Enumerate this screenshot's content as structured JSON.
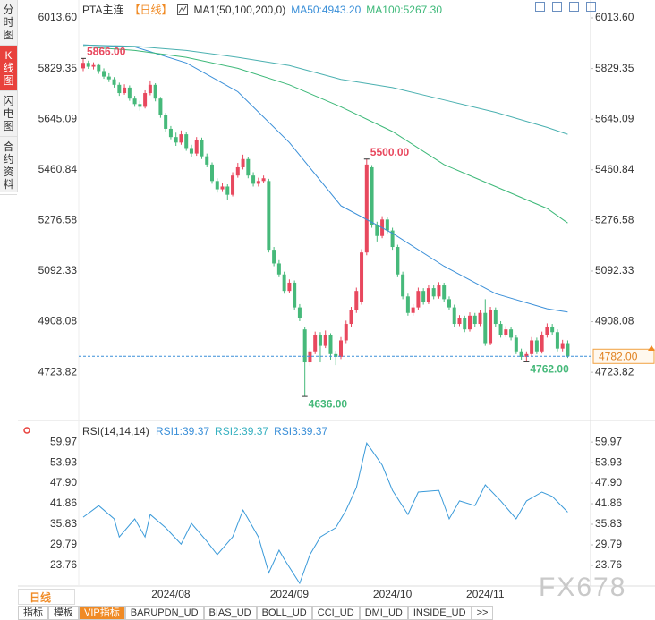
{
  "sidebar": {
    "tabs": [
      "分时图",
      "K线图",
      "闪电图",
      "合约资料"
    ],
    "active": 1
  },
  "chart_data": [
    {
      "type": "candlestick",
      "title": "PTA主连",
      "period": "【日线】",
      "indicator": "MA1(50,100,200,0)",
      "up_color": "#e8485e",
      "down_color": "#46b97a",
      "categories": [
        null,
        null,
        null,
        null,
        null,
        null,
        null,
        null,
        null,
        null,
        null,
        null,
        null,
        null,
        null,
        null,
        null,
        "2024/08",
        null,
        null,
        null,
        null,
        null,
        null,
        null,
        null,
        null,
        null,
        null,
        null,
        null,
        null,
        null,
        null,
        null,
        null,
        null,
        null,
        null,
        null,
        "2024/09",
        null,
        null,
        null,
        null,
        null,
        null,
        null,
        null,
        null,
        null,
        null,
        null,
        null,
        null,
        null,
        null,
        null,
        null,
        null,
        "2024/10",
        null,
        null,
        null,
        null,
        null,
        null,
        null,
        null,
        null,
        null,
        null,
        null,
        null,
        null,
        null,
        null,
        null,
        "2024/11",
        null,
        null,
        null,
        null,
        null,
        null,
        null,
        null,
        null,
        null,
        null,
        null,
        null,
        null,
        null,
        null
      ],
      "open": [
        5830,
        5850,
        5836,
        5842,
        5820,
        5800,
        5790,
        5770,
        5740,
        5760,
        5720,
        5700,
        5690,
        5740,
        5770,
        5720,
        5660,
        5610,
        5580,
        5560,
        5590,
        5540,
        5520,
        5570,
        5510,
        5480,
        5420,
        5390,
        5400,
        5370,
        5440,
        5470,
        5500,
        5440,
        5410,
        5420,
        5420,
        5170,
        5120,
        5080,
        5020,
        5050,
        4960,
        4880,
        4760,
        4800,
        4860,
        4820,
        4860,
        4790,
        4780,
        4840,
        4900,
        4950,
        4980,
        5160,
        5470,
        5260,
        5220,
        5280,
        5240,
        5180,
        5080,
        5000,
        4940,
        4960,
        5020,
        4980,
        5030,
        5000,
        5040,
        4990,
        4960,
        4900,
        4920,
        4880,
        4930,
        4900,
        4940,
        4830,
        4950,
        4900,
        4860,
        4880,
        4850,
        4800,
        4780,
        4790,
        4840,
        4800,
        4860,
        4890,
        4870,
        4810,
        4830
      ],
      "high": [
        5866,
        5858,
        5852,
        5848,
        5830,
        5812,
        5798,
        5778,
        5772,
        5768,
        5730,
        5712,
        5750,
        5786,
        5776,
        5726,
        5668,
        5620,
        5596,
        5604,
        5598,
        5552,
        5580,
        5578,
        5520,
        5488,
        5430,
        5412,
        5408,
        5452,
        5486,
        5516,
        5506,
        5452,
        5432,
        5440,
        5428,
        5180,
        5132,
        5090,
        5062,
        5058,
        4972,
        4890,
        4812,
        4872,
        4870,
        4876,
        4866,
        4802,
        4852,
        4912,
        4962,
        5032,
        5172,
        5500,
        5478,
        5272,
        5292,
        5290,
        5250,
        5188,
        5090,
        5010,
        4972,
        5032,
        5030,
        5042,
        5040,
        5052,
        5050,
        5000,
        4970,
        4932,
        4930,
        4942,
        4940,
        4952,
        4990,
        4962,
        4960,
        4910,
        4892,
        4890,
        4860,
        4810,
        4800,
        4852,
        4850,
        4872,
        4902,
        4900,
        4880,
        4842,
        4840
      ],
      "low": [
        5820,
        5828,
        5826,
        5810,
        5792,
        5780,
        5760,
        5730,
        5734,
        5712,
        5690,
        5676,
        5684,
        5732,
        5710,
        5650,
        5600,
        5572,
        5548,
        5552,
        5530,
        5506,
        5512,
        5500,
        5470,
        5410,
        5378,
        5380,
        5352,
        5364,
        5432,
        5462,
        5430,
        5400,
        5400,
        5412,
        5160,
        5110,
        5070,
        5010,
        5012,
        4950,
        4910,
        4636,
        4748,
        4790,
        4760,
        4812,
        4770,
        4750,
        4772,
        4830,
        4890,
        4940,
        4970,
        5150,
        5250,
        5200,
        5212,
        5230,
        5170,
        5070,
        4990,
        4930,
        4930,
        4952,
        4970,
        4972,
        4990,
        4992,
        4980,
        4950,
        4890,
        4892,
        4870,
        4872,
        4890,
        4892,
        4820,
        4822,
        4890,
        4850,
        4852,
        4840,
        4790,
        4770,
        4762,
        4782,
        4790,
        4792,
        4850,
        4860,
        4800,
        4800,
        4776
      ],
      "close": [
        5850,
        5836,
        5842,
        5820,
        5800,
        5790,
        5770,
        5740,
        5760,
        5720,
        5700,
        5690,
        5740,
        5770,
        5720,
        5660,
        5610,
        5580,
        5560,
        5590,
        5540,
        5520,
        5570,
        5510,
        5480,
        5420,
        5390,
        5400,
        5370,
        5440,
        5470,
        5500,
        5440,
        5410,
        5420,
        5430,
        5170,
        5120,
        5080,
        5020,
        5050,
        4960,
        4920,
        4760,
        4800,
        4860,
        4820,
        4860,
        4790,
        4780,
        4840,
        4900,
        4950,
        5020,
        5160,
        5480,
        5260,
        5220,
        5280,
        5240,
        5180,
        5080,
        5000,
        4940,
        4960,
        5020,
        4980,
        5030,
        5000,
        5040,
        4990,
        4960,
        4900,
        4920,
        4880,
        4930,
        4900,
        4940,
        4830,
        4950,
        4900,
        4860,
        4880,
        4850,
        4800,
        4780,
        4790,
        4840,
        4800,
        4860,
        4890,
        4870,
        4810,
        4830,
        4782
      ],
      "lines": [
        {
          "label": "MA50:4943.20",
          "color": "#3a8fd8",
          "x": [
            0,
            10,
            20,
            30,
            40,
            50,
            60,
            70,
            80,
            90,
            94
          ],
          "values": [
            5915,
            5908,
            5850,
            5745,
            5560,
            5330,
            5230,
            5110,
            5010,
            4955,
            4943.2
          ]
        },
        {
          "label": "MA100:5267.30",
          "color": "#3cb878",
          "x": [
            0,
            10,
            20,
            30,
            40,
            50,
            60,
            70,
            80,
            90,
            94
          ],
          "values": [
            5909,
            5895,
            5870,
            5830,
            5770,
            5690,
            5600,
            5480,
            5400,
            5320,
            5267.3
          ]
        },
        {
          "color": "#4ab0b0",
          "x": [
            0,
            10,
            20,
            30,
            40,
            50,
            60,
            70,
            80,
            90,
            94
          ],
          "values": [
            5915,
            5910,
            5895,
            5870,
            5840,
            5790,
            5760,
            5715,
            5670,
            5615,
            5590
          ]
        }
      ],
      "annotations": [
        {
          "value": 5866,
          "label": "5866.00"
        },
        {
          "value": 5500,
          "label": "5500.00"
        },
        {
          "value": 4636,
          "label": "4636.00"
        },
        {
          "value": 4762,
          "label": "4762.00"
        }
      ],
      "last_price": {
        "value": 4782,
        "label": "4782.00"
      },
      "ylim": [
        4568,
        6052.7
      ],
      "yticks": [
        {
          "value": 6013.6,
          "label": "6013.60"
        },
        5829.35,
        5645.09,
        5460.84,
        5276.58,
        5092.33,
        4908.08,
        4723.82
      ]
    },
    {
      "type": "line",
      "title": "RSI(14,14,14)",
      "legend": [
        {
          "label": "RSI1:39.37",
          "color": "#3a8fd8"
        },
        {
          "label": "RSI2:39.37",
          "color": "#36b0c0"
        },
        {
          "label": "RSI3:39.37",
          "color": "#3a8fd8"
        }
      ],
      "color": "#3a9ad9",
      "x": [
        0,
        3,
        6,
        7,
        10,
        12,
        13,
        16,
        19,
        21,
        24,
        26,
        29,
        31,
        32,
        34,
        36,
        38,
        39,
        42,
        44,
        46,
        49,
        51,
        53,
        55,
        58,
        60,
        63,
        65,
        69,
        71,
        73,
        76,
        78,
        81,
        84,
        86,
        89,
        91,
        94
      ],
      "values": [
        37.9,
        41.3,
        37.4,
        32.1,
        37.4,
        32.1,
        38.7,
        34.8,
        30.0,
        36.1,
        30.8,
        26.9,
        32.1,
        40.0,
        37.4,
        32.1,
        21.6,
        28.2,
        25.6,
        18.5,
        26.9,
        32.1,
        34.8,
        40.0,
        46.6,
        59.7,
        53.2,
        45.8,
        38.7,
        45.3,
        45.8,
        37.4,
        42.7,
        41.3,
        47.4,
        42.7,
        37.4,
        42.7,
        45.3,
        44.0,
        39.37
      ],
      "ylim": [
        17.7,
        65.0
      ],
      "yticks": [
        59.97,
        53.93,
        {
          "value": 47.9,
          "label": "47.90"
        },
        41.86,
        35.83,
        29.79,
        23.76
      ]
    }
  ],
  "period_tab": "日线",
  "bottom_tabs": [
    "指标",
    "模板",
    "VIP指标",
    "BARUPDN_UD",
    "BIAS_UD",
    "BOLL_UD",
    "CCI_UD",
    "DMI_UD",
    "INSIDE_UD",
    ">>"
  ],
  "bottom_active": 2,
  "watermark": "FX678"
}
